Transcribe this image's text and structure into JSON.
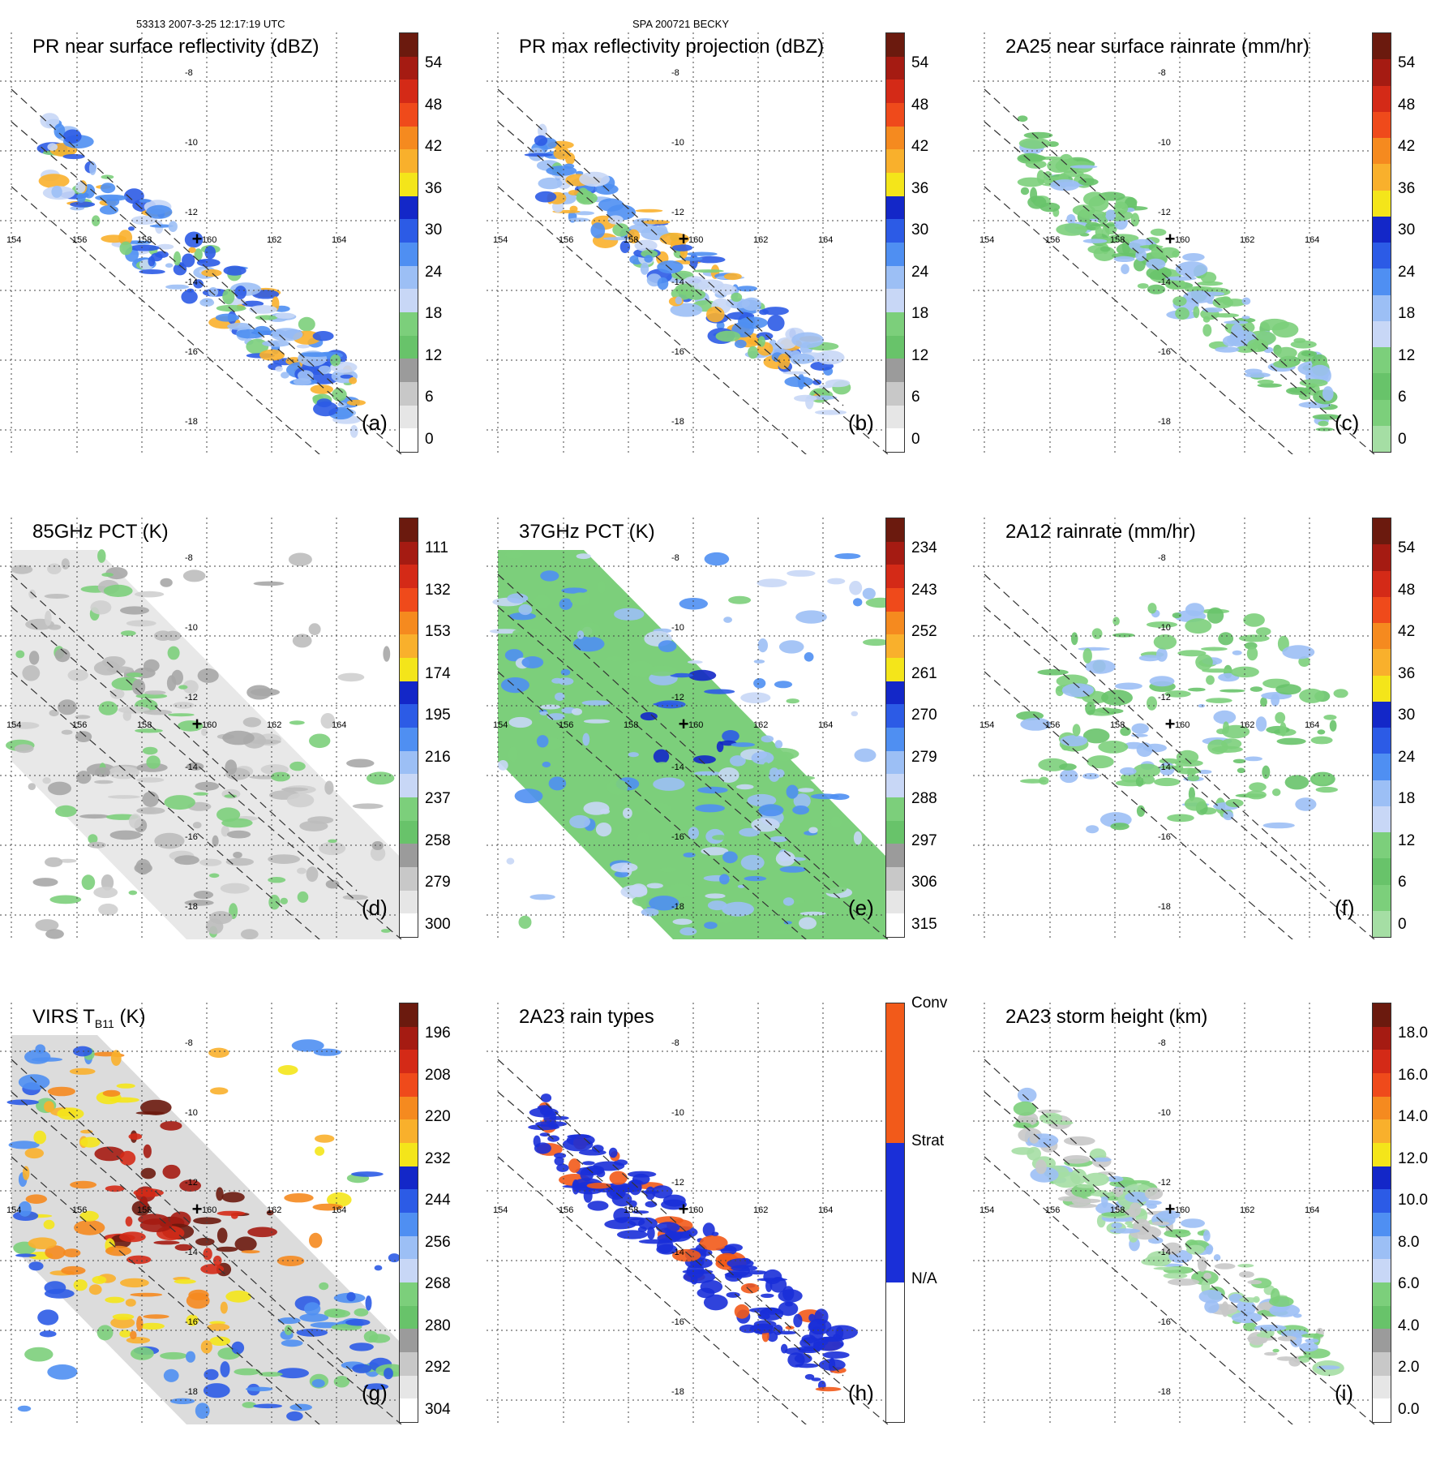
{
  "header": {
    "left": "53313 2007-3-25 12:17:19 UTC",
    "center": "SPA 200721 BECKY"
  },
  "longitudes": [
    "154",
    "156",
    "158",
    "160",
    "162",
    "164"
  ],
  "latitudes": [
    "-8",
    "-10",
    "-12",
    "-14",
    "-16",
    "-18"
  ],
  "panels": [
    {
      "title": "PR near surface reflectivity (dBZ)",
      "label": "(a)",
      "ticks": [
        "54",
        "48",
        "42",
        "36",
        "30",
        "24",
        "18",
        "12",
        "6",
        "0"
      ],
      "field": "swath",
      "palette": "dbz",
      "colors": [
        "#6b1a0e",
        "#a51b12",
        "#d42a17",
        "#ef4a1b",
        "#f58a1f",
        "#f9b02c",
        "#f4e51a",
        "#1327c8",
        "#2c5be6",
        "#4f8ff2",
        "#9cbff5",
        "#c8d7f6",
        "#7ccf7b",
        "#68c36a",
        "#9b9b9b",
        "#c8c8c8",
        "#e6e6e6",
        "#ffffff"
      ]
    },
    {
      "title": "PR max reflectivity projection (dBZ)",
      "label": "(b)",
      "ticks": [
        "54",
        "48",
        "42",
        "36",
        "30",
        "24",
        "18",
        "12",
        "6",
        "0"
      ],
      "field": "swath",
      "palette": "dbz",
      "colors": [
        "#6b1a0e",
        "#a51b12",
        "#d42a17",
        "#ef4a1b",
        "#f58a1f",
        "#f9b02c",
        "#f4e51a",
        "#1327c8",
        "#2c5be6",
        "#4f8ff2",
        "#9cbff5",
        "#c8d7f6",
        "#7ccf7b",
        "#68c36a",
        "#9b9b9b",
        "#c8c8c8",
        "#e6e6e6",
        "#ffffff"
      ]
    },
    {
      "title": "2A25 near surface rainrate (mm/hr)",
      "label": "(c)",
      "ticks": [
        "54",
        "48",
        "42",
        "36",
        "30",
        "24",
        "18",
        "12",
        "6",
        "0"
      ],
      "field": "swath",
      "palette": "rain",
      "colors": [
        "#6b1a0e",
        "#a51b12",
        "#d42a17",
        "#ef4a1b",
        "#f58a1f",
        "#f9b02c",
        "#f4e51a",
        "#1327c8",
        "#2c5be6",
        "#4f8ff2",
        "#9cbff5",
        "#c8d7f6",
        "#7ccf7b",
        "#68c36a",
        "#7ccf7b",
        "#a5dea4"
      ]
    },
    {
      "title": "85GHz PCT (K)",
      "label": "(d)",
      "ticks": [
        "111",
        "132",
        "153",
        "174",
        "195",
        "216",
        "237",
        "258",
        "279",
        "300"
      ],
      "field": "wide",
      "palette": "gray",
      "colors": [
        "#6b1a0e",
        "#a51b12",
        "#d42a17",
        "#ef4a1b",
        "#f58a1f",
        "#f9b02c",
        "#f4e51a",
        "#1327c8",
        "#2c5be6",
        "#4f8ff2",
        "#9cbff5",
        "#c8d7f6",
        "#7ccf7b",
        "#68c36a",
        "#9b9b9b",
        "#c8c8c8",
        "#e6e6e6",
        "#ffffff"
      ]
    },
    {
      "title": "37GHz PCT (K)",
      "label": "(e)",
      "ticks": [
        "234",
        "243",
        "252",
        "261",
        "270",
        "279",
        "288",
        "297",
        "306",
        "315"
      ],
      "field": "wide",
      "palette": "green",
      "colors": [
        "#6b1a0e",
        "#a51b12",
        "#d42a17",
        "#ef4a1b",
        "#f58a1f",
        "#f9b02c",
        "#f4e51a",
        "#1327c8",
        "#2c5be6",
        "#4f8ff2",
        "#9cbff5",
        "#c8d7f6",
        "#7ccf7b",
        "#68c36a",
        "#9b9b9b",
        "#c8c8c8",
        "#e6e6e6",
        "#ffffff"
      ]
    },
    {
      "title": "2A12 rainrate (mm/hr)",
      "label": "(f)",
      "ticks": [
        "54",
        "48",
        "42",
        "36",
        "30",
        "24",
        "18",
        "12",
        "6",
        "0"
      ],
      "field": "blob",
      "palette": "rain",
      "colors": [
        "#6b1a0e",
        "#a51b12",
        "#d42a17",
        "#ef4a1b",
        "#f58a1f",
        "#f9b02c",
        "#f4e51a",
        "#1327c8",
        "#2c5be6",
        "#4f8ff2",
        "#9cbff5",
        "#c8d7f6",
        "#7ccf7b",
        "#68c36a",
        "#7ccf7b",
        "#a5dea4"
      ]
    },
    {
      "title": "VIRS T",
      "title_sub": "B11",
      "title_tail": " (K)",
      "label": "(g)",
      "ticks": [
        "196",
        "208",
        "220",
        "232",
        "244",
        "256",
        "268",
        "280",
        "292",
        "304"
      ],
      "field": "wide",
      "palette": "ir",
      "colors": [
        "#6b1a0e",
        "#a51b12",
        "#d42a17",
        "#ef4a1b",
        "#f58a1f",
        "#f9b02c",
        "#f4e51a",
        "#1327c8",
        "#2c5be6",
        "#4f8ff2",
        "#9cbff5",
        "#c8d7f6",
        "#7ccf7b",
        "#68c36a",
        "#9b9b9b",
        "#c8c8c8",
        "#e6e6e6",
        "#ffffff"
      ]
    },
    {
      "title": "2A23 rain types",
      "label": "(h)",
      "ticks": [
        "Conv",
        "Strat",
        "N/A"
      ],
      "field": "swath",
      "palette": "type",
      "colors": [
        "#f25a1a",
        "#1a2fd8",
        "#ffffff"
      ]
    },
    {
      "title": "2A23 storm height (km)",
      "label": "(i)",
      "ticks": [
        "18.0",
        "16.0",
        "14.0",
        "12.0",
        "10.0",
        "8.0",
        "6.0",
        "4.0",
        "2.0",
        "0.0"
      ],
      "field": "swath",
      "palette": "height",
      "colors": [
        "#6b1a0e",
        "#a51b12",
        "#d42a17",
        "#ef4a1b",
        "#f58a1f",
        "#f9b02c",
        "#f4e51a",
        "#1327c8",
        "#2c5be6",
        "#4f8ff2",
        "#9cbff5",
        "#c8d7f6",
        "#7ccf7b",
        "#68c36a",
        "#9b9b9b",
        "#c8c8c8",
        "#e6e6e6",
        "#ffffff"
      ]
    }
  ]
}
